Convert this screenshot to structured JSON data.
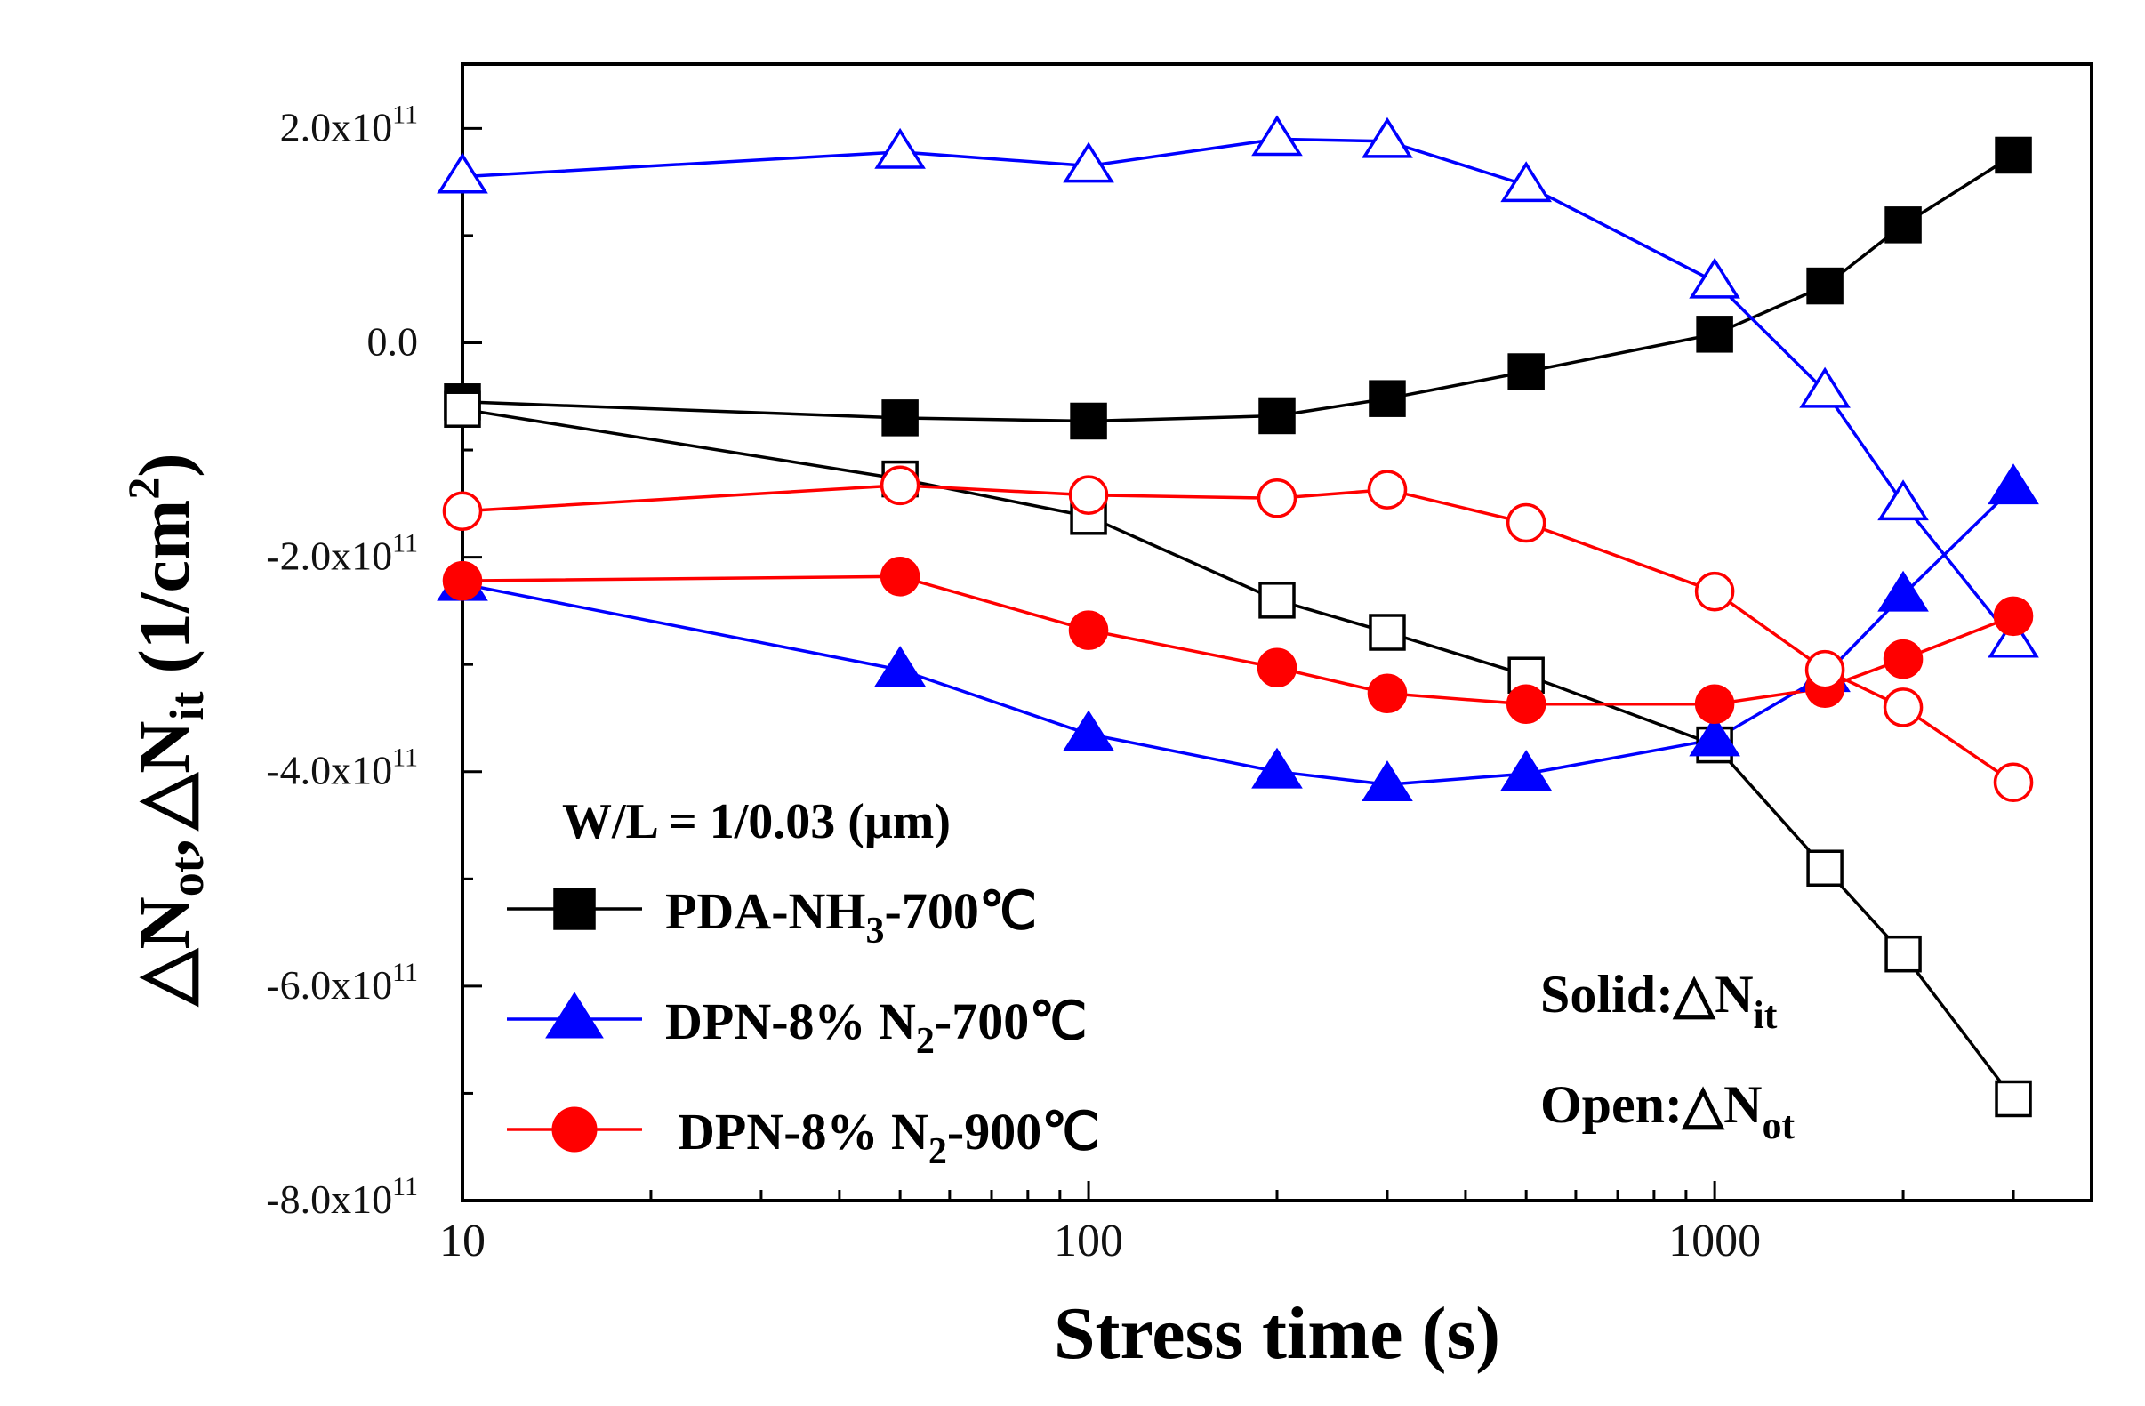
{
  "chart_data": {
    "type": "line",
    "x_scale": "log",
    "xlim": [
      10,
      4000
    ],
    "ylim": [
      -800000000000.0,
      260000000000.0
    ],
    "xlabel": "Stress time (s)",
    "ylabel": {
      "delta": "△",
      "n": "N",
      "sub_ot": "ot",
      "comma": ",",
      "sub_it": "it",
      "unit": "(1/cm",
      "unit_exp": "2",
      "unit_close": ")"
    },
    "x_ticks": [
      {
        "value": 10,
        "label": "10"
      },
      {
        "value": 100,
        "label": "100"
      },
      {
        "value": 1000,
        "label": "1000"
      }
    ],
    "y_ticks": [
      {
        "value": 200000000000.0,
        "mantissa": "2.0x10",
        "exp": "11"
      },
      {
        "value": 0,
        "mantissa": "0.0",
        "exp": ""
      },
      {
        "value": -200000000000.0,
        "mantissa": "-2.0x10",
        "exp": "11"
      },
      {
        "value": -400000000000.0,
        "mantissa": "-4.0x10",
        "exp": "11"
      },
      {
        "value": -600000000000.0,
        "mantissa": "-6.0x10",
        "exp": "11"
      },
      {
        "value": -800000000000.0,
        "mantissa": "-8.0x10",
        "exp": "11"
      }
    ],
    "x": [
      10,
      50,
      100,
      200,
      300,
      500,
      1000,
      1500,
      2000,
      3000
    ],
    "series": [
      {
        "name": "PDA-NH3-700℃ ΔNit",
        "color": "#000000",
        "marker": "square",
        "fill": "solid",
        "values": [
          -55000000000.0,
          -70000000000.0,
          -73000000000.0,
          -68000000000.0,
          -52000000000.0,
          -27000000000.0,
          8000000000.0,
          53000000000.0,
          110000000000.0,
          175000000000.0
        ]
      },
      {
        "name": "PDA-NH3-700℃ ΔNot",
        "color": "#000000",
        "marker": "square",
        "fill": "open",
        "values": [
          -62000000000.0,
          -127000000000.0,
          -162000000000.0,
          -240000000000.0,
          -270000000000.0,
          -310000000000.0,
          -375000000000.0,
          -490000000000.0,
          -570000000000.0,
          -705000000000.0
        ]
      },
      {
        "name": "DPN-8% N2-700℃ ΔNit",
        "color": "#0000ff",
        "marker": "triangle",
        "fill": "solid",
        "values": [
          -225000000000.0,
          -305000000000.0,
          -365000000000.0,
          -400000000000.0,
          -412000000000.0,
          -402000000000.0,
          -370000000000.0,
          -310000000000.0,
          -235000000000.0,
          -135000000000.0
        ]
      },
      {
        "name": "DPN-8% N2-700℃ ΔNot",
        "color": "#0000ff",
        "marker": "triangle",
        "fill": "open",
        "values": [
          155000000000.0,
          178000000000.0,
          165000000000.0,
          190000000000.0,
          188000000000.0,
          147000000000.0,
          57000000000.0,
          -45000000000.0,
          -150000000000.0,
          -278000000000.0
        ]
      },
      {
        "name": "DPN-8% N2-900℃ ΔNit",
        "color": "#ff0000",
        "marker": "circle",
        "fill": "solid",
        "values": [
          -222000000000.0,
          -218000000000.0,
          -268000000000.0,
          -303000000000.0,
          -327000000000.0,
          -337000000000.0,
          -337000000000.0,
          -322000000000.0,
          -295000000000.0,
          -255000000000.0
        ]
      },
      {
        "name": "DPN-8% N2-900℃ ΔNot",
        "color": "#ff0000",
        "marker": "circle",
        "fill": "open",
        "values": [
          -157000000000.0,
          -133000000000.0,
          -142000000000.0,
          -145000000000.0,
          -137000000000.0,
          -168000000000.0,
          -232000000000.0,
          -305000000000.0,
          -340000000000.0,
          -410000000000.0
        ]
      }
    ],
    "legend": {
      "title": "W/L = 1/0.03 (μm)",
      "entries": [
        {
          "pre": "PDA-NH",
          "sub": "3",
          "post": "-700℃",
          "color": "#000000",
          "marker": "square"
        },
        {
          "pre": "DPN-8% N",
          "sub": "2",
          "post": "-700℃",
          "color": "#0000ff",
          "marker": "triangle"
        },
        {
          "pre": "DPN-8% N",
          "sub": "2",
          "post": "-900℃",
          "color": "#ff0000",
          "marker": "circle"
        }
      ]
    },
    "annotations": {
      "solid": {
        "prefix": "Solid:△N",
        "sub": "it"
      },
      "open": {
        "prefix": "Open:△N",
        "sub": "ot"
      }
    }
  }
}
